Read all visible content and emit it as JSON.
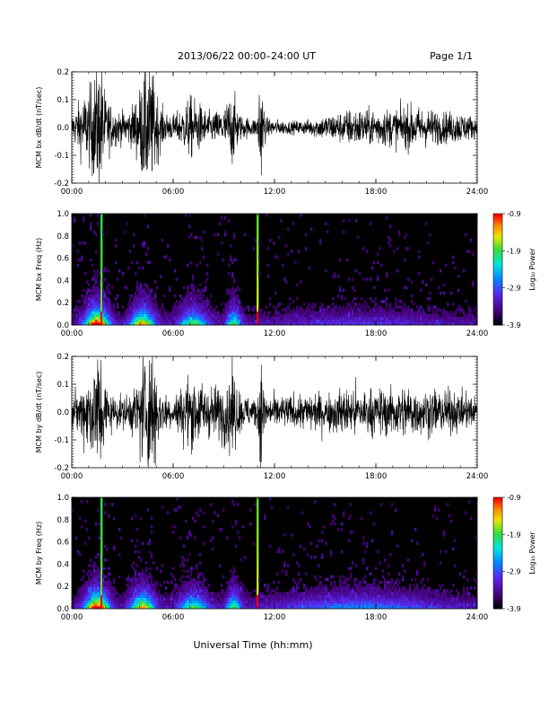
{
  "header": {
    "title": "2013/06/22  00:00–24:00 UT",
    "page": "Page 1/1"
  },
  "xlabel": "Universal Time (hh:mm)",
  "colorbar": {
    "label": "Log₁₀ Power",
    "ticks": [
      "-0.9",
      "-1.9",
      "-2.9",
      "-3.9"
    ]
  },
  "chart_data": [
    {
      "type": "line",
      "ylabel": "MCM bx dB/dt (nT/sec)",
      "xticks": [
        "00:00",
        "06:00",
        "12:00",
        "18:00",
        "24:00"
      ],
      "yticks": [
        "-0.2",
        "-0.1",
        "0.0",
        "0.1",
        "0.2"
      ],
      "xlim": [
        0,
        24
      ],
      "ylim": [
        -0.2,
        0.2
      ],
      "envelope": {
        "x": [
          0,
          0.5,
          1.0,
          1.5,
          1.75,
          2.0,
          2.5,
          3.0,
          3.5,
          4.0,
          4.3,
          4.6,
          4.9,
          5.2,
          5.5,
          6.0,
          6.5,
          7.0,
          7.5,
          8.0,
          8.5,
          9.0,
          9.5,
          10.0,
          10.5,
          11.0,
          11.1,
          11.5,
          12.0,
          13.0,
          14.0,
          15.0,
          16.0,
          16.5,
          17.0,
          17.5,
          18.0,
          19.0,
          20.0,
          21.0,
          22.0,
          23.0,
          24.0
        ],
        "amplitude": [
          0.04,
          0.09,
          0.12,
          0.2,
          0.2,
          0.1,
          0.06,
          0.05,
          0.06,
          0.12,
          0.2,
          0.2,
          0.15,
          0.08,
          0.05,
          0.04,
          0.06,
          0.1,
          0.08,
          0.05,
          0.05,
          0.06,
          0.12,
          0.04,
          0.03,
          0.03,
          0.2,
          0.03,
          0.025,
          0.02,
          0.025,
          0.04,
          0.05,
          0.06,
          0.06,
          0.055,
          0.06,
          0.06,
          0.07,
          0.06,
          0.05,
          0.05,
          0.03
        ]
      }
    },
    {
      "type": "heatmap",
      "ylabel": "MCM bx Freq (Hz)",
      "xticks": [
        "00:00",
        "06:00",
        "12:00",
        "18:00",
        "24:00"
      ],
      "yticks": [
        "0.0",
        "0.2",
        "0.4",
        "0.6",
        "0.8",
        "1.0"
      ],
      "xlim": [
        0,
        24
      ],
      "ylim": [
        0,
        1.0
      ],
      "zlim": [
        -3.9,
        -0.9
      ]
    },
    {
      "type": "line",
      "ylabel": "MCM by dB/dt (nT/sec)",
      "xticks": [
        "00:00",
        "06:00",
        "12:00",
        "18:00",
        "24:00"
      ],
      "yticks": [
        "-0.2",
        "-0.1",
        "0.0",
        "0.1",
        "0.2"
      ],
      "xlim": [
        0,
        24
      ],
      "ylim": [
        -0.2,
        0.2
      ],
      "envelope": {
        "x": [
          0,
          0.5,
          1.0,
          1.5,
          1.75,
          2.0,
          2.5,
          3.0,
          3.5,
          4.0,
          4.3,
          4.6,
          4.9,
          5.2,
          5.5,
          6.0,
          6.5,
          7.0,
          7.5,
          8.0,
          8.5,
          9.0,
          9.5,
          10.0,
          10.5,
          11.0,
          11.1,
          11.5,
          12.0,
          13.0,
          14.0,
          15.0,
          16.0,
          16.5,
          17.0,
          17.5,
          18.0,
          19.0,
          20.0,
          21.0,
          22.0,
          23.0,
          24.0
        ],
        "amplitude": [
          0.05,
          0.08,
          0.12,
          0.2,
          0.2,
          0.09,
          0.05,
          0.05,
          0.06,
          0.12,
          0.2,
          0.2,
          0.2,
          0.08,
          0.06,
          0.05,
          0.08,
          0.12,
          0.1,
          0.08,
          0.08,
          0.1,
          0.14,
          0.06,
          0.05,
          0.05,
          0.2,
          0.05,
          0.05,
          0.05,
          0.06,
          0.06,
          0.07,
          0.08,
          0.08,
          0.07,
          0.07,
          0.08,
          0.08,
          0.07,
          0.07,
          0.06,
          0.05
        ]
      }
    },
    {
      "type": "heatmap",
      "ylabel": "MCM by Freq (Hz)",
      "xticks": [
        "00:00",
        "06:00",
        "12:00",
        "18:00",
        "24:00"
      ],
      "yticks": [
        "0.0",
        "0.2",
        "0.4",
        "0.6",
        "0.8",
        "1.0"
      ],
      "xlim": [
        0,
        24
      ],
      "ylim": [
        0,
        1.0
      ],
      "zlim": [
        -3.9,
        -0.9
      ]
    }
  ]
}
